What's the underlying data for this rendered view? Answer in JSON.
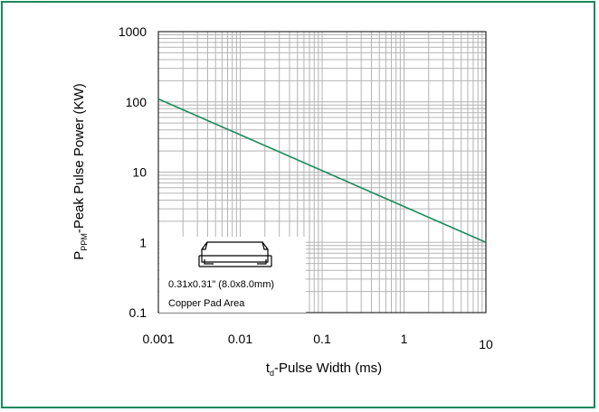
{
  "chart_data": {
    "type": "line",
    "x_scale": "log",
    "y_scale": "log",
    "xlim": [
      0.001,
      10
    ],
    "ylim": [
      0.1,
      1000
    ],
    "grid": true,
    "x_ticks": [
      "0.001",
      "0.01",
      "0.1",
      "1",
      "10"
    ],
    "y_ticks": [
      "1000",
      "100",
      "10",
      "1",
      "0.1"
    ],
    "ylabel": {
      "main": "P",
      "sub": "PPM",
      "rest": "-Peak Pulse Power (KW)"
    },
    "xlabel": {
      "main": "t",
      "sub": "d",
      "rest": "-Pulse Width (ms)"
    },
    "series": [
      {
        "x": [
          0.001,
          10
        ],
        "y": [
          110,
          1
        ],
        "color": "#1a8a5a"
      }
    ],
    "annotation": {
      "line1": "0.31x0.31\" (8.0x8.0mm)",
      "line2": "Copper Pad Area"
    }
  },
  "colors": {
    "frame": "#1a8a5a",
    "grid": "#b4b4b4",
    "axis": "#000000"
  }
}
